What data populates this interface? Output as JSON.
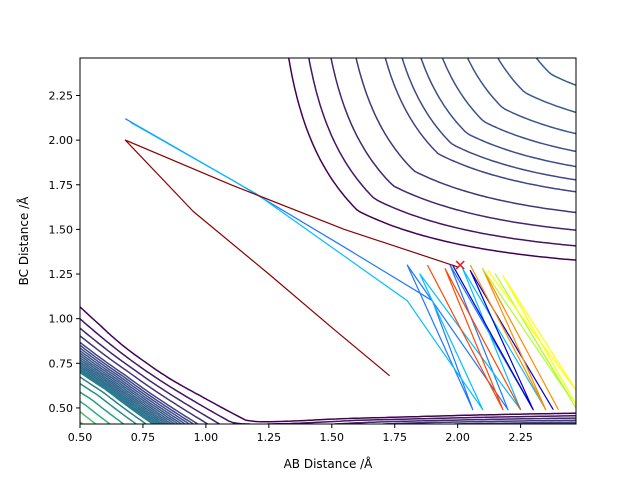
{
  "chart_data": {
    "type": "line",
    "subtype": "contour plot with overlaid trajectories",
    "title": "",
    "xlabel": "AB Distance /Å",
    "ylabel": "BC Distance /Å",
    "xlim": [
      0.5,
      2.47
    ],
    "ylim": [
      0.41,
      2.46
    ],
    "x_ticks": [
      {
        "value": 0.5,
        "label": "0.50"
      },
      {
        "value": 0.75,
        "label": "0.75"
      },
      {
        "value": 1.0,
        "label": "1.00"
      },
      {
        "value": 1.25,
        "label": "1.25"
      },
      {
        "value": 1.5,
        "label": "1.50"
      },
      {
        "value": 1.75,
        "label": "1.75"
      },
      {
        "value": 2.0,
        "label": "2.00"
      },
      {
        "value": 2.25,
        "label": "2.25"
      }
    ],
    "y_ticks": [
      {
        "value": 0.5,
        "label": "0.50"
      },
      {
        "value": 0.75,
        "label": "0.75"
      },
      {
        "value": 1.0,
        "label": "1.00"
      },
      {
        "value": 1.25,
        "label": "1.25"
      },
      {
        "value": 1.5,
        "label": "1.50"
      },
      {
        "value": 1.75,
        "label": "1.75"
      },
      {
        "value": 2.0,
        "label": "2.00"
      },
      {
        "value": 2.25,
        "label": "2.25"
      }
    ],
    "grid": false,
    "legend": "none",
    "colormap": "viridis",
    "colormap_stops": [
      "#440154",
      "#414487",
      "#2a788e",
      "#22a884",
      "#7ad151",
      "#fde725"
    ],
    "potential_surface": {
      "well_minimum": [
        0.74,
        0.74
      ],
      "saddle_point": [
        0.93,
        0.93
      ],
      "dissociation_energy": 1.0,
      "barrier_height": 0.38,
      "morse_width": 1.9,
      "levels": [
        0.5,
        0.58,
        0.66,
        0.74,
        0.82,
        0.86,
        0.9,
        0.94,
        0.98,
        1.02,
        1.06,
        1.1,
        1.14,
        1.18,
        1.22,
        1.26,
        1.3,
        1.34,
        1.38,
        1.5,
        1.7,
        2.0,
        2.4,
        2.9,
        3.5,
        4.2,
        5.0,
        6.0
      ]
    },
    "trajectory": {
      "name": "",
      "color": "#8b0000",
      "start": [
        2.02,
        1.3
      ],
      "points": [
        [
          2.0,
          1.29
        ],
        [
          1.55,
          1.5
        ],
        [
          1.1,
          1.75
        ],
        [
          0.68,
          2.0
        ],
        [
          0.95,
          1.6
        ],
        [
          1.25,
          1.25
        ],
        [
          1.5,
          0.95
        ],
        [
          1.73,
          0.68
        ]
      ]
    },
    "start_marker": {
      "x": 2.01,
      "y": 1.3,
      "symbol": "x",
      "color": "#d62728"
    },
    "oscillation_trajectories": [
      {
        "color": "#1f77ff",
        "points": [
          [
            0.68,
            2.12
          ],
          [
            1.1,
            1.78
          ],
          [
            1.55,
            1.4
          ],
          [
            1.9,
            1.1
          ],
          [
            2.06,
            0.49
          ],
          [
            1.8,
            1.3
          ],
          [
            2.2,
            0.49
          ],
          [
            1.97,
            1.3
          ],
          [
            2.3,
            0.49
          ]
        ]
      },
      {
        "color": "#00bfff",
        "points": [
          [
            0.7,
            2.1
          ],
          [
            1.2,
            1.7
          ],
          [
            1.8,
            1.1
          ],
          [
            2.1,
            0.49
          ],
          [
            1.85,
            1.25
          ],
          [
            2.25,
            0.49
          ],
          [
            2.02,
            1.28
          ],
          [
            2.35,
            0.49
          ]
        ]
      },
      {
        "color": "#0000cd",
        "points": [
          [
            1.98,
            1.3
          ],
          [
            2.3,
            0.49
          ],
          [
            2.05,
            1.27
          ],
          [
            2.38,
            0.49
          ]
        ]
      },
      {
        "color": "#ff4500",
        "points": [
          [
            1.88,
            1.3
          ],
          [
            2.18,
            0.49
          ],
          [
            1.95,
            1.28
          ],
          [
            2.25,
            0.49
          ]
        ]
      },
      {
        "color": "#ff8c00",
        "points": [
          [
            2.05,
            1.3
          ],
          [
            2.35,
            0.49
          ],
          [
            2.1,
            1.28
          ],
          [
            2.4,
            0.49
          ]
        ]
      },
      {
        "color": "#adff2f",
        "points": [
          [
            2.1,
            1.28
          ],
          [
            2.45,
            0.55
          ],
          [
            2.15,
            1.25
          ],
          [
            2.47,
            0.5
          ]
        ]
      },
      {
        "color": "#ffff00",
        "points": [
          [
            2.12,
            1.27
          ],
          [
            2.47,
            0.6
          ],
          [
            2.18,
            1.24
          ],
          [
            2.47,
            0.52
          ]
        ]
      }
    ]
  }
}
